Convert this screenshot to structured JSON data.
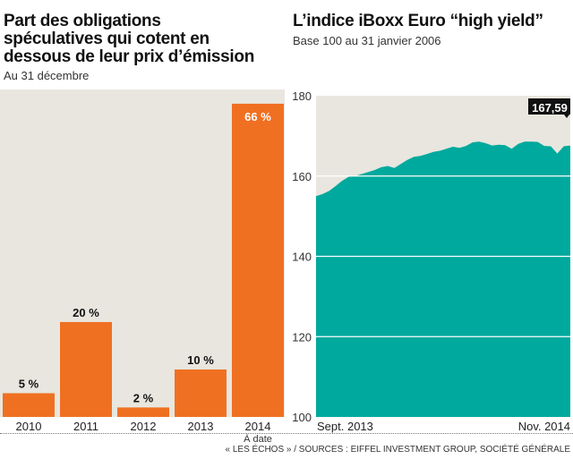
{
  "chart_data": [
    {
      "type": "bar",
      "title": "Part des obligations spéculatives qui cotent en dessous de leur prix d’émission",
      "subtitle": "Au 31 décembre",
      "categories": [
        "2010",
        "2011",
        "2012",
        "2013",
        "2014"
      ],
      "category_notes": [
        "",
        "",
        "",
        "",
        "À date"
      ],
      "values": [
        5,
        20,
        2,
        10,
        66
      ],
      "data_labels": [
        "5 %",
        "20 %",
        "2 %",
        "10 %",
        "66 %"
      ],
      "ylim": [
        0,
        69
      ],
      "color": "#f07022",
      "background": "#e8e6df"
    },
    {
      "type": "area",
      "title": "L’indice iBoxx Euro “high yield”",
      "subtitle": "Base 100 au 31 janvier 2006",
      "x_labels": [
        "Sept. 2013",
        "Nov. 2014"
      ],
      "yticks": [
        100,
        120,
        140,
        160,
        180
      ],
      "ylim": [
        100,
        180
      ],
      "grid": true,
      "values": [
        155,
        155.5,
        156.3,
        157.5,
        158.8,
        159.8,
        160,
        160.5,
        161,
        161.5,
        162.2,
        162.5,
        162,
        163,
        164,
        164.8,
        165,
        165.5,
        166,
        166.3,
        166.8,
        167.3,
        167,
        167.5,
        168.4,
        168.6,
        168.2,
        167.6,
        167.8,
        167.7,
        166.8,
        168,
        168.6,
        168.6,
        168.5,
        167.5,
        167.4,
        165.6,
        167.4,
        167.59
      ],
      "last_label": "167,59",
      "color": "#00a99d",
      "background": "#e8e6df"
    }
  ],
  "source": "« LES ÉCHOS » / SOURCES : EIFFEL INVESTMENT GROUP, SOCIÉTÉ GÉNÉRALE"
}
